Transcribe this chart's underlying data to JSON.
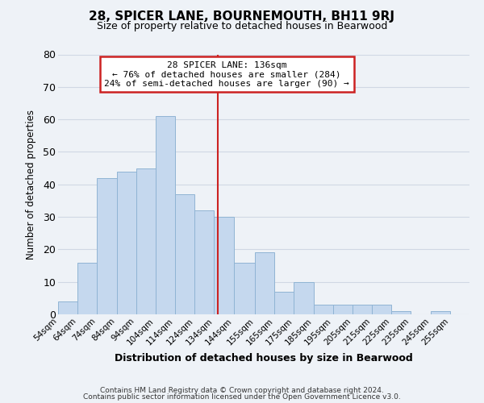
{
  "title": "28, SPICER LANE, BOURNEMOUTH, BH11 9RJ",
  "subtitle": "Size of property relative to detached houses in Bearwood",
  "xlabel": "Distribution of detached houses by size in Bearwood",
  "ylabel": "Number of detached properties",
  "bar_color": "#c5d8ee",
  "bar_edge_color": "#90b4d4",
  "background_color": "#eef2f7",
  "grid_color": "#d0d8e4",
  "bin_labels": [
    "54sqm",
    "64sqm",
    "74sqm",
    "84sqm",
    "94sqm",
    "104sqm",
    "114sqm",
    "124sqm",
    "134sqm",
    "144sqm",
    "155sqm",
    "165sqm",
    "175sqm",
    "185sqm",
    "195sqm",
    "205sqm",
    "215sqm",
    "225sqm",
    "235sqm",
    "245sqm",
    "255sqm"
  ],
  "bar_heights": [
    4,
    16,
    42,
    44,
    45,
    61,
    37,
    32,
    30,
    16,
    19,
    7,
    10,
    3,
    3,
    3,
    3,
    1,
    0,
    1,
    0
  ],
  "bin_lefts": [
    54,
    64,
    74,
    84,
    94,
    104,
    114,
    124,
    134,
    144,
    155,
    165,
    175,
    185,
    195,
    205,
    215,
    225,
    235,
    245,
    255
  ],
  "ylim": [
    0,
    80
  ],
  "yticks": [
    0,
    10,
    20,
    30,
    40,
    50,
    60,
    70,
    80
  ],
  "property_line_x": 136,
  "annotation_title": "28 SPICER LANE: 136sqm",
  "annotation_line1": "← 76% of detached houses are smaller (284)",
  "annotation_line2": "24% of semi-detached houses are larger (90) →",
  "annotation_box_color": "#ffffff",
  "annotation_box_edge_color": "#cc2222",
  "footnote1": "Contains HM Land Registry data © Crown copyright and database right 2024.",
  "footnote2": "Contains public sector information licensed under the Open Government Licence v3.0."
}
